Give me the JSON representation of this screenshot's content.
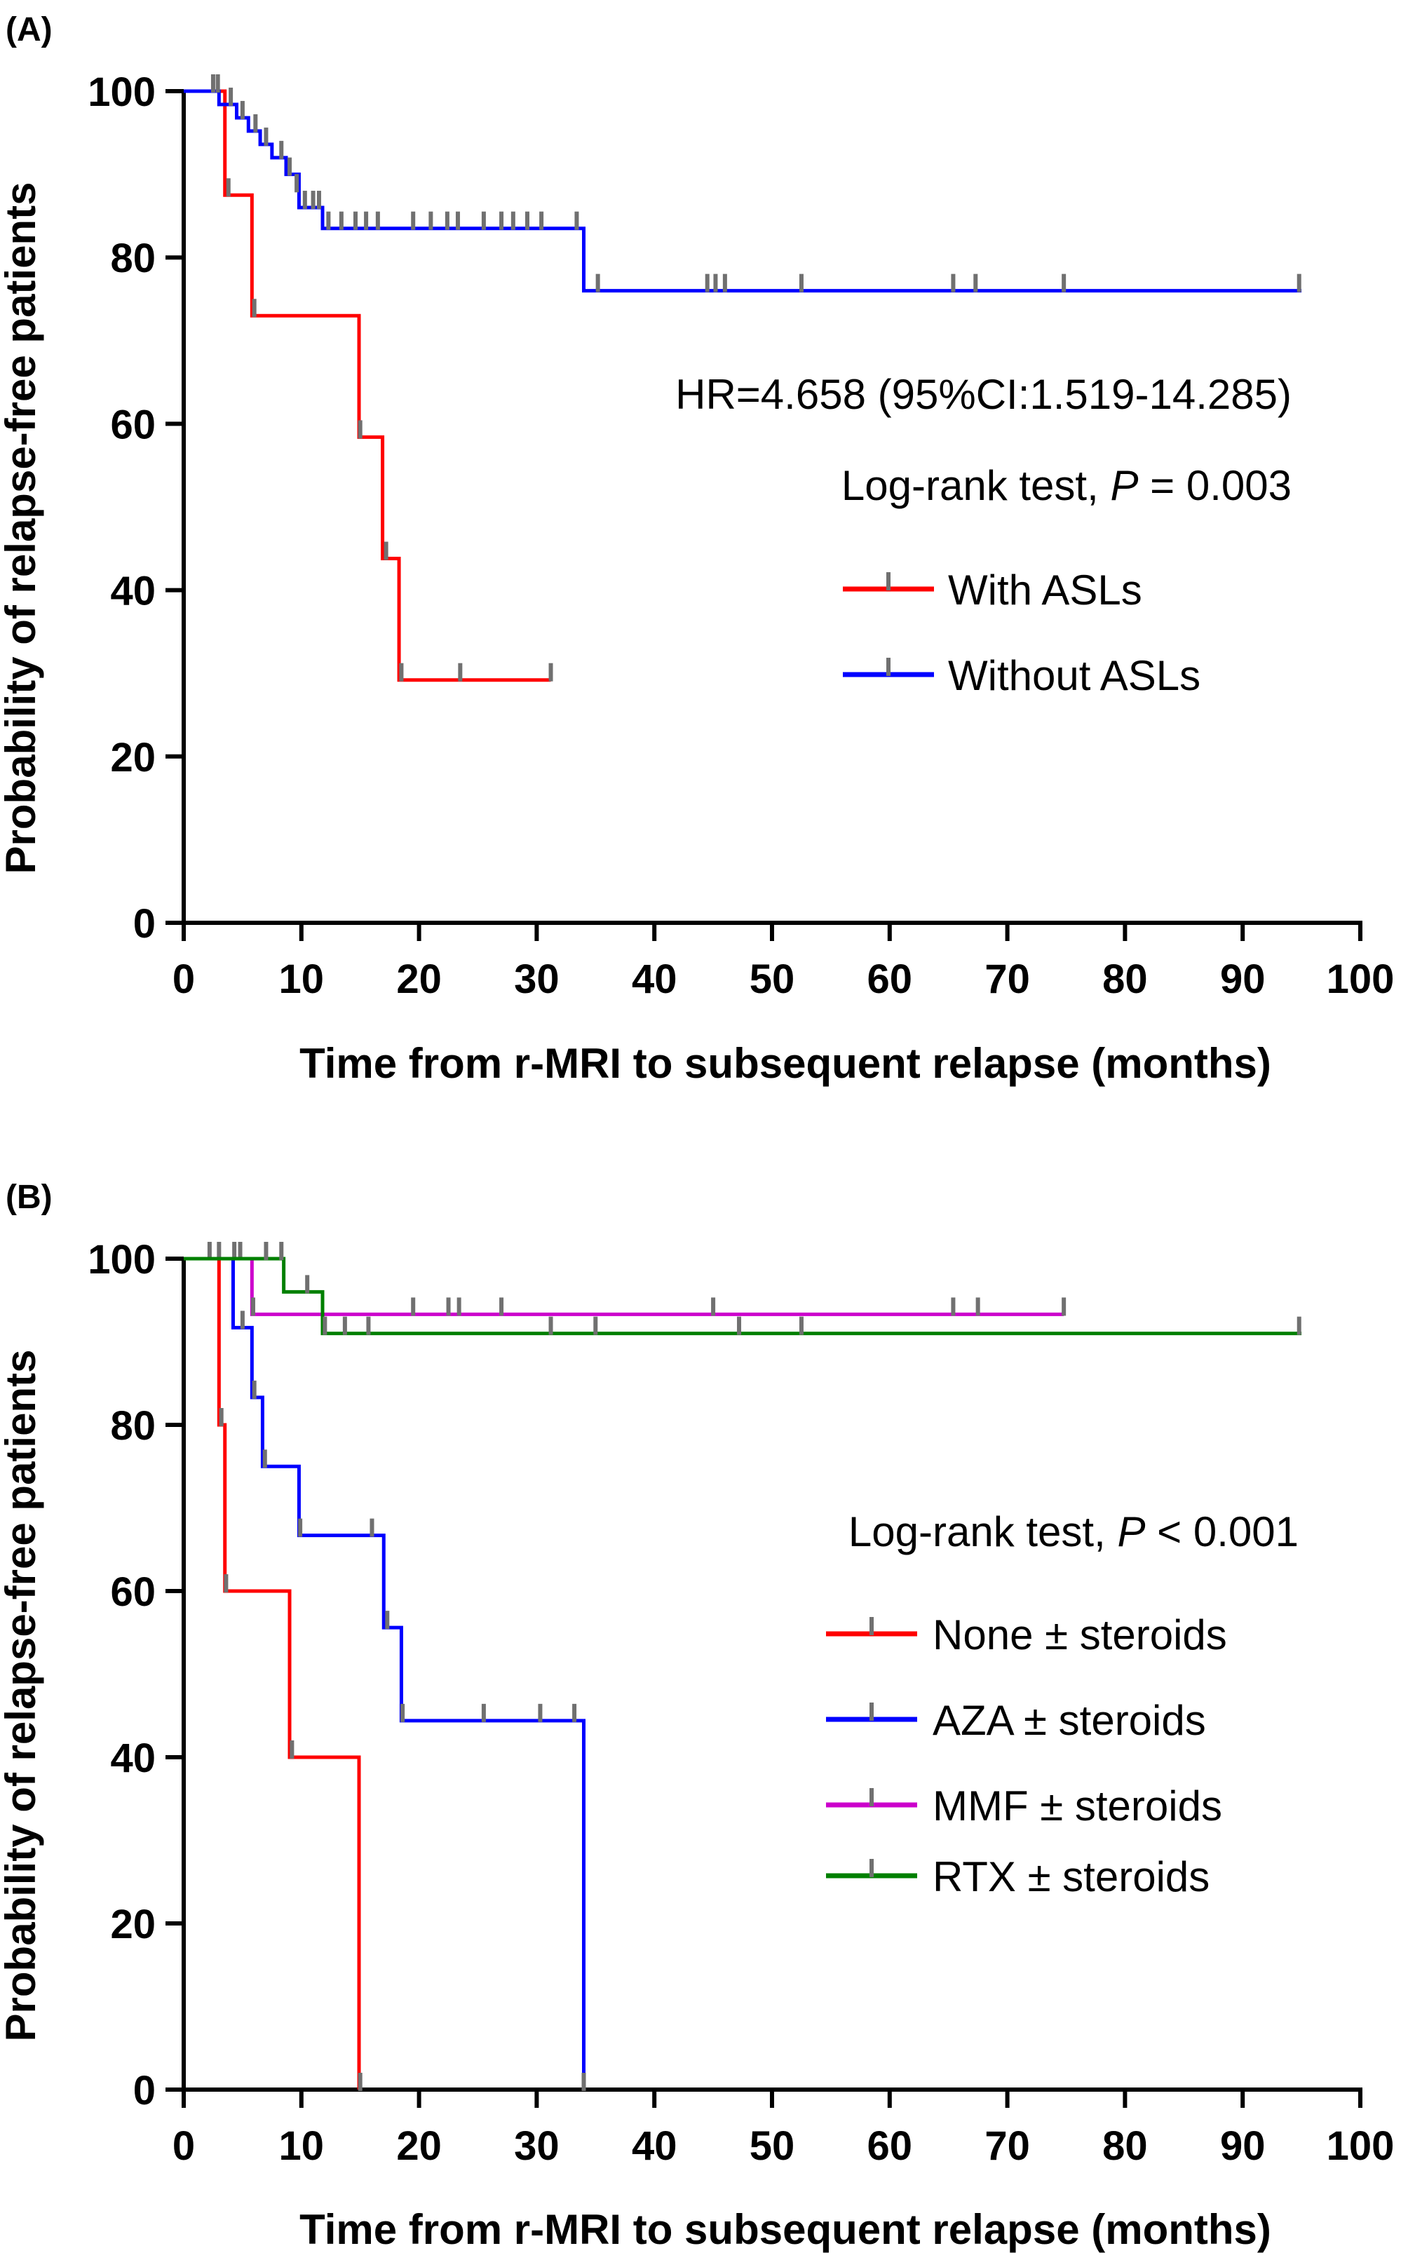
{
  "chart_data": [
    {
      "type": "line",
      "subtype": "kaplan-meier",
      "panel_label": "(A)",
      "title": "",
      "xlabel": "Time from r-MRI to subsequent relapse (months)",
      "ylabel": "Probability of relapse-free patients",
      "xlim": [
        0,
        100
      ],
      "ylim": [
        0,
        100
      ],
      "x_ticks": [
        0,
        10,
        20,
        30,
        40,
        50,
        60,
        70,
        80,
        90,
        100
      ],
      "y_ticks": [
        0,
        20,
        40,
        60,
        80,
        100
      ],
      "grid": false,
      "legend_position": "right-middle",
      "annotations": [
        {
          "text": "HR=4.658 (95%CI:1.519-14.285)"
        },
        {
          "text_before": "Log-rank test, ",
          "italic": "P",
          "text_after": " = 0.003"
        }
      ],
      "series": [
        {
          "name": "With ASLs",
          "color": "#ff0000",
          "x": [
            0,
            3.5,
            5.8,
            14.9,
            16.9,
            18.3,
            31.2
          ],
          "y": [
            100,
            87.5,
            73,
            58.4,
            43.8,
            29.2,
            29.2
          ],
          "censored": [
            [
              3.8,
              87.5
            ],
            [
              6.0,
              73
            ],
            [
              15.0,
              58.4
            ],
            [
              17.2,
              43.8
            ],
            [
              18.5,
              29.2
            ],
            [
              23.5,
              29.2
            ],
            [
              31.2,
              29.2
            ]
          ]
        },
        {
          "name": "Without ASLs",
          "color": "#0000ff",
          "x": [
            0,
            3.0,
            4.5,
            5.5,
            6.5,
            7.5,
            8.7,
            9.8,
            11.8,
            34.0,
            95.0
          ],
          "y": [
            100,
            98.4,
            96.8,
            95.2,
            93.6,
            92.0,
            90.0,
            86.0,
            83.5,
            76.0,
            76.0
          ],
          "censored": [
            [
              2.5,
              100
            ],
            [
              2.9,
              100
            ],
            [
              4.0,
              98.4
            ],
            [
              5.0,
              96.8
            ],
            [
              6.1,
              95.2
            ],
            [
              7.0,
              93.6
            ],
            [
              8.3,
              92.0
            ],
            [
              9.0,
              90.0
            ],
            [
              9.6,
              88.0
            ],
            [
              10.3,
              86.0
            ],
            [
              11.0,
              86.0
            ],
            [
              11.5,
              86.0
            ],
            [
              12.3,
              83.5
            ],
            [
              13.4,
              83.5
            ],
            [
              14.6,
              83.5
            ],
            [
              15.5,
              83.5
            ],
            [
              16.5,
              83.5
            ],
            [
              19.5,
              83.5
            ],
            [
              21.0,
              83.5
            ],
            [
              22.4,
              83.5
            ],
            [
              23.3,
              83.5
            ],
            [
              25.5,
              83.5
            ],
            [
              27.0,
              83.5
            ],
            [
              28.0,
              83.5
            ],
            [
              29.2,
              83.5
            ],
            [
              30.4,
              83.5
            ],
            [
              33.4,
              83.5
            ],
            [
              35.2,
              76.0
            ],
            [
              44.5,
              76.0
            ],
            [
              45.2,
              76.0
            ],
            [
              46.0,
              76.0
            ],
            [
              52.5,
              76.0
            ],
            [
              65.4,
              76.0
            ],
            [
              67.3,
              76.0
            ],
            [
              74.8,
              76.0
            ],
            [
              94.8,
              76.0
            ]
          ]
        }
      ]
    },
    {
      "type": "line",
      "subtype": "kaplan-meier",
      "panel_label": "(B)",
      "title": "",
      "xlabel": "Time from r-MRI to subsequent relapse (months)",
      "ylabel": "Probability of relapse-free patients",
      "xlim": [
        0,
        100
      ],
      "ylim": [
        0,
        100
      ],
      "x_ticks": [
        0,
        10,
        20,
        30,
        40,
        50,
        60,
        70,
        80,
        90,
        100
      ],
      "y_ticks": [
        0,
        20,
        40,
        60,
        80,
        100
      ],
      "grid": false,
      "legend_position": "right-middle",
      "annotations": [
        {
          "text_before": "Log-rank test, ",
          "italic": "P",
          "text_after": " < 0.001"
        }
      ],
      "series": [
        {
          "name": "None ± steroids",
          "color": "#ff0000",
          "x": [
            0,
            3.0,
            3.5,
            9.0,
            14.9
          ],
          "y": [
            100,
            80,
            60,
            40,
            0
          ],
          "censored": [
            [
              3.2,
              80
            ],
            [
              3.6,
              60
            ],
            [
              9.2,
              40
            ],
            [
              15.0,
              0
            ]
          ]
        },
        {
          "name": "AZA ± steroids",
          "color": "#0000ff",
          "x": [
            0,
            4.2,
            5.8,
            6.7,
            9.8,
            17.0,
            18.5,
            34.0
          ],
          "y": [
            100,
            91.7,
            83.3,
            75.0,
            66.7,
            55.6,
            44.4,
            0
          ],
          "censored": [
            [
              4.3,
              100
            ],
            [
              5.0,
              91.7
            ],
            [
              6.0,
              83.3
            ],
            [
              6.9,
              75.0
            ],
            [
              9.9,
              66.7
            ],
            [
              16.0,
              66.7
            ],
            [
              17.3,
              55.6
            ],
            [
              18.6,
              44.4
            ],
            [
              25.5,
              44.4
            ],
            [
              30.3,
              44.4
            ],
            [
              33.2,
              44.4
            ],
            [
              34.0,
              0
            ]
          ]
        },
        {
          "name": "MMF ± steroids",
          "color": "#cc00cc",
          "x": [
            0,
            5.8,
            74.8
          ],
          "y": [
            100,
            93.3,
            93.3
          ],
          "censored": [
            [
              2.2,
              100
            ],
            [
              3.0,
              100
            ],
            [
              4.8,
              100
            ],
            [
              5.9,
              93.3
            ],
            [
              19.5,
              93.3
            ],
            [
              22.5,
              93.3
            ],
            [
              23.4,
              93.3
            ],
            [
              27.0,
              93.3
            ],
            [
              45.0,
              93.3
            ],
            [
              65.4,
              93.3
            ],
            [
              67.5,
              93.3
            ],
            [
              74.8,
              93.3
            ]
          ]
        },
        {
          "name": "RTX ± steroids",
          "color": "#008000",
          "x": [
            0,
            8.5,
            11.8,
            95.0
          ],
          "y": [
            100,
            96,
            91,
            91
          ],
          "censored": [
            [
              7.0,
              100
            ],
            [
              8.3,
              100
            ],
            [
              10.5,
              96
            ],
            [
              12.0,
              91
            ],
            [
              13.7,
              91
            ],
            [
              15.7,
              91
            ],
            [
              31.2,
              91
            ],
            [
              35.0,
              91
            ],
            [
              47.2,
              91
            ],
            [
              52.5,
              91
            ],
            [
              94.8,
              91
            ]
          ]
        }
      ]
    }
  ]
}
